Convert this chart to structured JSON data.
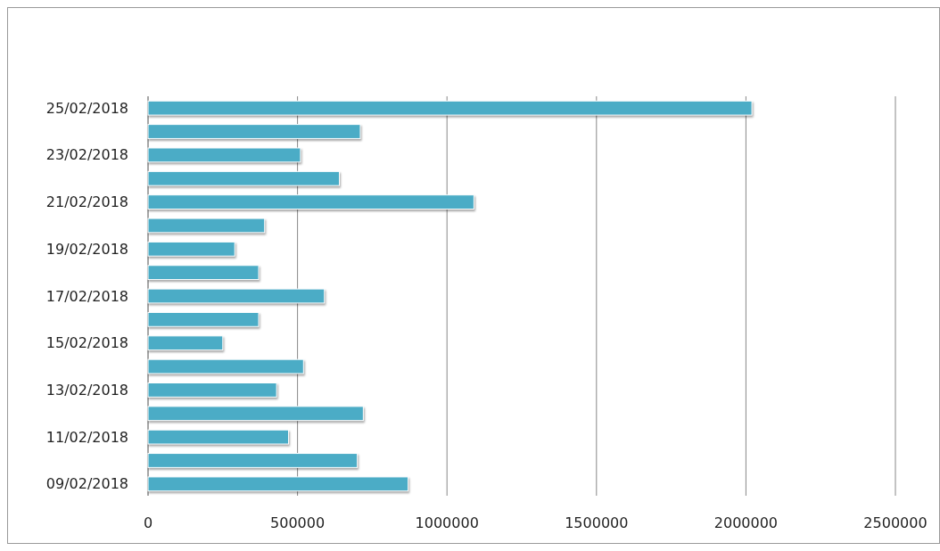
{
  "chart_data": {
    "type": "bar",
    "orientation": "horizontal",
    "categories": [
      "25/02/2018",
      null,
      "23/02/2018",
      null,
      "21/02/2018",
      null,
      "19/02/2018",
      null,
      "17/02/2018",
      null,
      "15/02/2018",
      null,
      "13/02/2018",
      null,
      "11/02/2018",
      null,
      "09/02/2018"
    ],
    "values": [
      2020000,
      710000,
      510000,
      640000,
      1090000,
      390000,
      290000,
      370000,
      590000,
      370000,
      250000,
      520000,
      430000,
      720000,
      470000,
      700000,
      870000
    ],
    "color": "#4bacc6",
    "xlim": [
      0,
      2500000
    ],
    "xticks": [
      0,
      500000,
      1000000,
      1500000,
      2000000,
      2500000
    ],
    "grid": "x"
  }
}
